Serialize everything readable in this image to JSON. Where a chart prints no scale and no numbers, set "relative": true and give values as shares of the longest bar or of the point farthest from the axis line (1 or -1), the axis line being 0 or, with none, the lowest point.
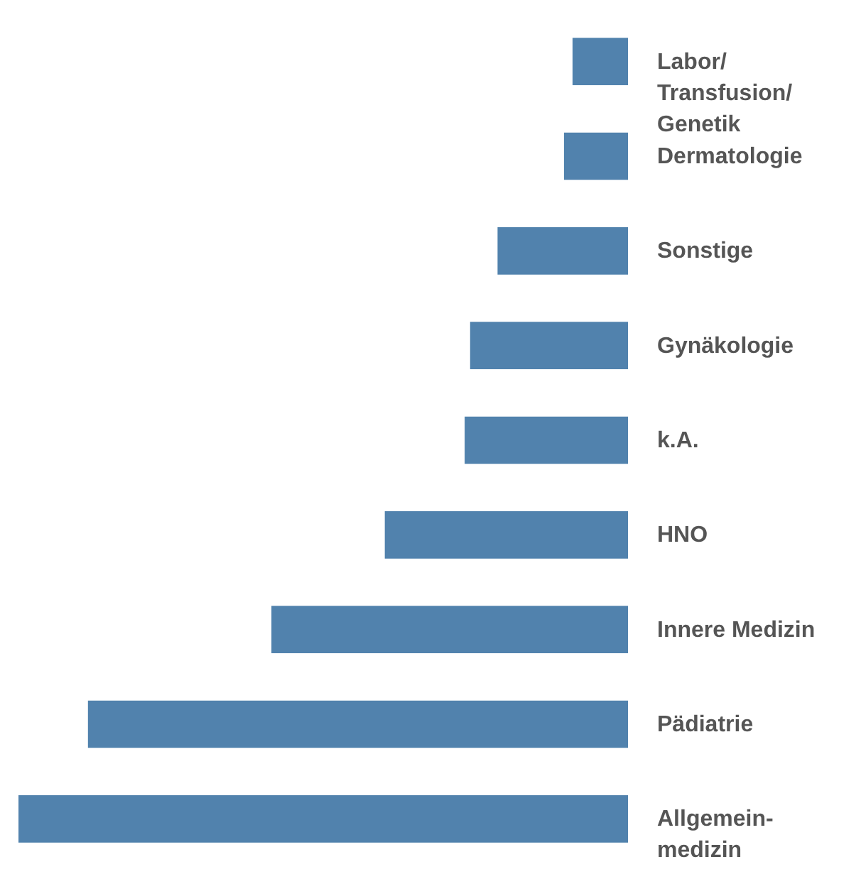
{
  "chart_data": {
    "type": "bar",
    "orientation": "horizontal",
    "relative": true,
    "categories": [
      "Labor/Transfusion/Genetik",
      "Dermatologie",
      "Sonstige",
      "Gynäkologie",
      "k.A.",
      "HNO",
      "Innere Medizin",
      "Pädiatrie",
      "Allgemein-medizin"
    ],
    "values": [
      0.091,
      0.105,
      0.214,
      0.259,
      0.268,
      0.399,
      0.585,
      0.886,
      1
    ],
    "color": "#5182ad",
    "grid": false
  }
}
